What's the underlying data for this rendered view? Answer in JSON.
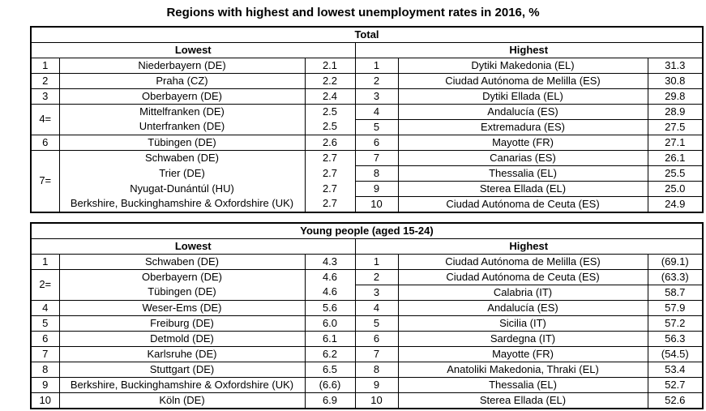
{
  "page": {
    "title": "Regions with highest and lowest unemployment rates in 2016, %"
  },
  "tables": [
    {
      "title": "Total",
      "lowest_label": "Lowest",
      "highest_label": "Highest",
      "lowest": [
        {
          "rank": "1",
          "entries": [
            {
              "region": "Niederbayern (DE)",
              "value": "2.1"
            }
          ]
        },
        {
          "rank": "2",
          "entries": [
            {
              "region": "Praha (CZ)",
              "value": "2.2"
            }
          ]
        },
        {
          "rank": "3",
          "entries": [
            {
              "region": "Oberbayern (DE)",
              "value": "2.4"
            }
          ]
        },
        {
          "rank": "4=",
          "entries": [
            {
              "region": "Mittelfranken (DE)",
              "value": "2.5"
            },
            {
              "region": "Unterfranken (DE)",
              "value": "2.5"
            }
          ]
        },
        {
          "rank": "6",
          "entries": [
            {
              "region": "Tübingen (DE)",
              "value": "2.6"
            }
          ]
        },
        {
          "rank": "7=",
          "entries": [
            {
              "region": "Schwaben (DE)",
              "value": "2.7"
            },
            {
              "region": "Trier (DE)",
              "value": "2.7"
            },
            {
              "region": "Nyugat-Dunántúl (HU)",
              "value": "2.7"
            },
            {
              "region": "Berkshire, Buckinghamshire & Oxfordshire (UK)",
              "value": "2.7"
            }
          ]
        }
      ],
      "highest": [
        {
          "rank": "1",
          "entries": [
            {
              "region": "Dytiki Makedonia (EL)",
              "value": "31.3"
            }
          ]
        },
        {
          "rank": "2",
          "entries": [
            {
              "region": "Ciudad Autónoma de Melilla (ES)",
              "value": "30.8"
            }
          ]
        },
        {
          "rank": "3",
          "entries": [
            {
              "region": "Dytiki Ellada (EL)",
              "value": "29.8"
            }
          ]
        },
        {
          "rank": "4",
          "entries": [
            {
              "region": "Andalucía (ES)",
              "value": "28.9"
            }
          ]
        },
        {
          "rank": "5",
          "entries": [
            {
              "region": "Extremadura (ES)",
              "value": "27.5"
            }
          ]
        },
        {
          "rank": "6",
          "entries": [
            {
              "region": "Mayotte (FR)",
              "value": "27.1"
            }
          ]
        },
        {
          "rank": "7",
          "entries": [
            {
              "region": "Canarias (ES)",
              "value": "26.1"
            }
          ]
        },
        {
          "rank": "8",
          "entries": [
            {
              "region": "Thessalia (EL)",
              "value": "25.5"
            }
          ]
        },
        {
          "rank": "9",
          "entries": [
            {
              "region": "Sterea Ellada (EL)",
              "value": "25.0"
            }
          ]
        },
        {
          "rank": "10",
          "entries": [
            {
              "region": "Ciudad Autónoma de Ceuta (ES)",
              "value": "24.9"
            }
          ]
        }
      ]
    },
    {
      "title": "Young people (aged 15-24)",
      "lowest_label": "Lowest",
      "highest_label": "Highest",
      "lowest": [
        {
          "rank": "1",
          "entries": [
            {
              "region": "Schwaben (DE)",
              "value": "4.3"
            }
          ]
        },
        {
          "rank": "2=",
          "entries": [
            {
              "region": "Oberbayern (DE)",
              "value": "4.6"
            },
            {
              "region": "Tübingen (DE)",
              "value": "4.6"
            }
          ]
        },
        {
          "rank": "4",
          "entries": [
            {
              "region": "Weser-Ems (DE)",
              "value": "5.6"
            }
          ]
        },
        {
          "rank": "5",
          "entries": [
            {
              "region": "Freiburg (DE)",
              "value": "6.0"
            }
          ]
        },
        {
          "rank": "6",
          "entries": [
            {
              "region": "Detmold (DE)",
              "value": "6.1"
            }
          ]
        },
        {
          "rank": "7",
          "entries": [
            {
              "region": "Karlsruhe (DE)",
              "value": "6.2"
            }
          ]
        },
        {
          "rank": "8",
          "entries": [
            {
              "region": "Stuttgart (DE)",
              "value": "6.5"
            }
          ]
        },
        {
          "rank": "9",
          "entries": [
            {
              "region": "Berkshire, Buckinghamshire & Oxfordshire (UK)",
              "value": "(6.6)"
            }
          ]
        },
        {
          "rank": "10",
          "entries": [
            {
              "region": "Köln (DE)",
              "value": "6.9"
            }
          ]
        }
      ],
      "highest": [
        {
          "rank": "1",
          "entries": [
            {
              "region": "Ciudad Autónoma de Melilla (ES)",
              "value": "(69.1)"
            }
          ]
        },
        {
          "rank": "2",
          "entries": [
            {
              "region": "Ciudad Autónoma de Ceuta (ES)",
              "value": "(63.3)"
            }
          ]
        },
        {
          "rank": "3",
          "entries": [
            {
              "region": "Calabria (IT)",
              "value": "58.7"
            }
          ]
        },
        {
          "rank": "4",
          "entries": [
            {
              "region": "Andalucía (ES)",
              "value": "57.9"
            }
          ]
        },
        {
          "rank": "5",
          "entries": [
            {
              "region": "Sicilia (IT)",
              "value": "57.2"
            }
          ]
        },
        {
          "rank": "6",
          "entries": [
            {
              "region": "Sardegna (IT)",
              "value": "56.3"
            }
          ]
        },
        {
          "rank": "7",
          "entries": [
            {
              "region": "Mayotte (FR)",
              "value": "(54.5)"
            }
          ]
        },
        {
          "rank": "8",
          "entries": [
            {
              "region": "Anatoliki Makedonia, Thraki (EL)",
              "value": "53.4"
            }
          ]
        },
        {
          "rank": "9",
          "entries": [
            {
              "region": "Thessalia (EL)",
              "value": "52.7"
            }
          ]
        },
        {
          "rank": "10",
          "entries": [
            {
              "region": "Sterea Ellada (EL)",
              "value": "52.6"
            }
          ]
        }
      ]
    }
  ]
}
